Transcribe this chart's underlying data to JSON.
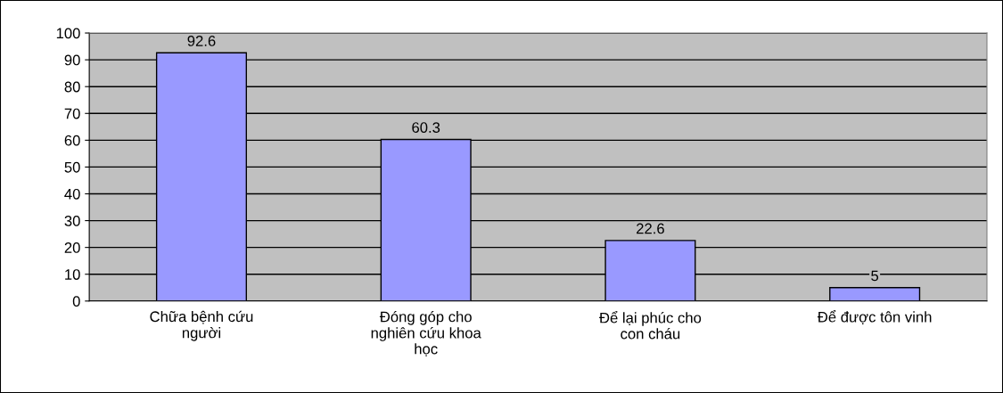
{
  "chart_data": {
    "type": "bar",
    "categories": [
      "Chữa bệnh cứu\nngười",
      "Đóng góp cho\nnghiên cứu khoa\nhọc",
      "Để lại phúc cho\ncon cháu",
      "Để được tôn vinh"
    ],
    "values": [
      92.6,
      60.3,
      22.6,
      5
    ],
    "color": "#9999ff",
    "ylim": [
      0,
      100
    ],
    "yticks": [
      0,
      10,
      20,
      30,
      40,
      50,
      60,
      70,
      80,
      90,
      100
    ],
    "grid": "y",
    "data_labels": true,
    "legend": false
  }
}
